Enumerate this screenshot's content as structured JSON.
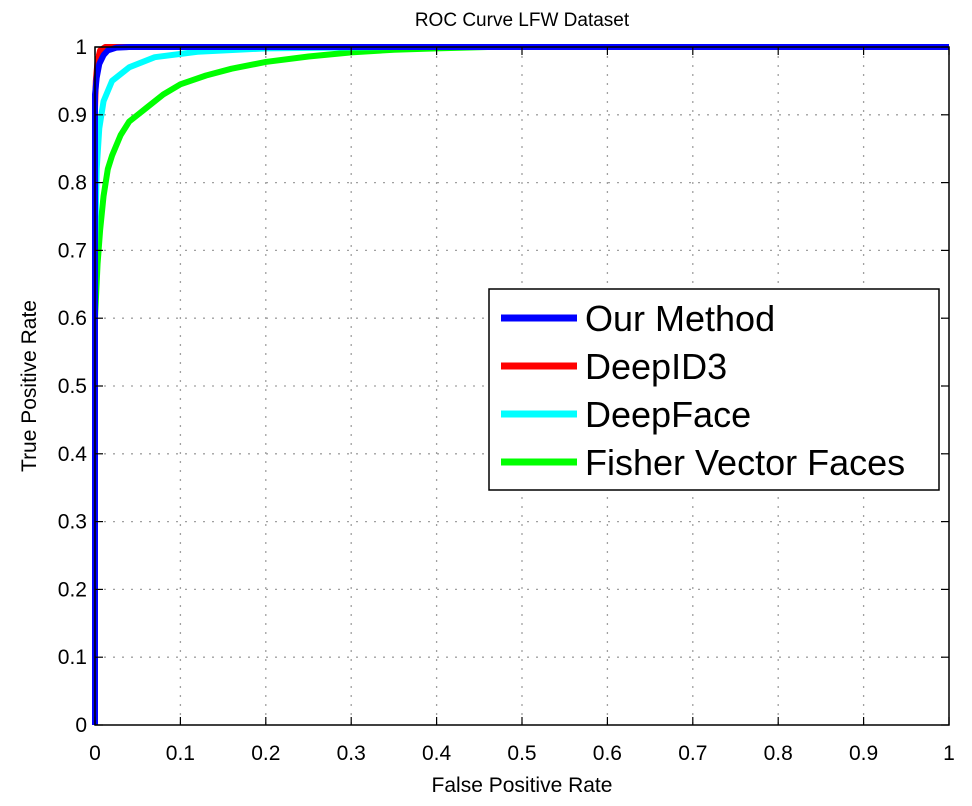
{
  "chart_data": {
    "type": "line",
    "title": "ROC Curve LFW Dataset",
    "xlabel": "False Positive Rate",
    "ylabel": "True Positive Rate",
    "xlim": [
      0,
      1
    ],
    "ylim": [
      0,
      1
    ],
    "xticks": [
      "0",
      "0.1",
      "0.2",
      "0.3",
      "0.4",
      "0.5",
      "0.6",
      "0.7",
      "0.8",
      "0.9",
      "1"
    ],
    "yticks": [
      "0",
      "0.1",
      "0.2",
      "0.3",
      "0.4",
      "0.5",
      "0.6",
      "0.7",
      "0.8",
      "0.9",
      "1"
    ],
    "grid": true,
    "legend_position": "center-right",
    "series": [
      {
        "name": "Our Method",
        "color": "#0000ff",
        "points": [
          [
            0,
            0
          ],
          [
            0,
            0.93
          ],
          [
            0.002,
            0.955
          ],
          [
            0.005,
            0.975
          ],
          [
            0.01,
            0.988
          ],
          [
            0.015,
            0.995
          ],
          [
            0.025,
            0.999
          ],
          [
            0.04,
            1
          ],
          [
            1,
            1
          ]
        ]
      },
      {
        "name": "DeepID3",
        "color": "#ff0000",
        "points": [
          [
            0,
            0
          ],
          [
            0,
            0.91
          ],
          [
            0.001,
            0.95
          ],
          [
            0.003,
            0.98
          ],
          [
            0.006,
            0.995
          ],
          [
            0.012,
            1
          ],
          [
            0.07,
            1
          ],
          [
            1,
            1
          ]
        ]
      },
      {
        "name": "DeepFace",
        "color": "#00ffff",
        "points": [
          [
            0,
            0
          ],
          [
            0,
            0.7
          ],
          [
            0.002,
            0.82
          ],
          [
            0.005,
            0.88
          ],
          [
            0.01,
            0.92
          ],
          [
            0.02,
            0.95
          ],
          [
            0.04,
            0.97
          ],
          [
            0.07,
            0.985
          ],
          [
            0.12,
            0.993
          ],
          [
            0.2,
            0.998
          ],
          [
            0.35,
            1
          ],
          [
            1,
            1
          ]
        ]
      },
      {
        "name": "Fisher Vector Faces",
        "color": "#00ff00",
        "points": [
          [
            0,
            0
          ],
          [
            0,
            0.6
          ],
          [
            0.003,
            0.68
          ],
          [
            0.006,
            0.73
          ],
          [
            0.01,
            0.78
          ],
          [
            0.015,
            0.82
          ],
          [
            0.02,
            0.84
          ],
          [
            0.03,
            0.87
          ],
          [
            0.04,
            0.89
          ],
          [
            0.05,
            0.9
          ],
          [
            0.06,
            0.91
          ],
          [
            0.08,
            0.93
          ],
          [
            0.1,
            0.945
          ],
          [
            0.13,
            0.958
          ],
          [
            0.16,
            0.968
          ],
          [
            0.2,
            0.978
          ],
          [
            0.25,
            0.986
          ],
          [
            0.3,
            0.992
          ],
          [
            0.35,
            0.996
          ],
          [
            0.4,
            0.998
          ],
          [
            0.46,
            1
          ],
          [
            1,
            1
          ]
        ]
      }
    ]
  }
}
